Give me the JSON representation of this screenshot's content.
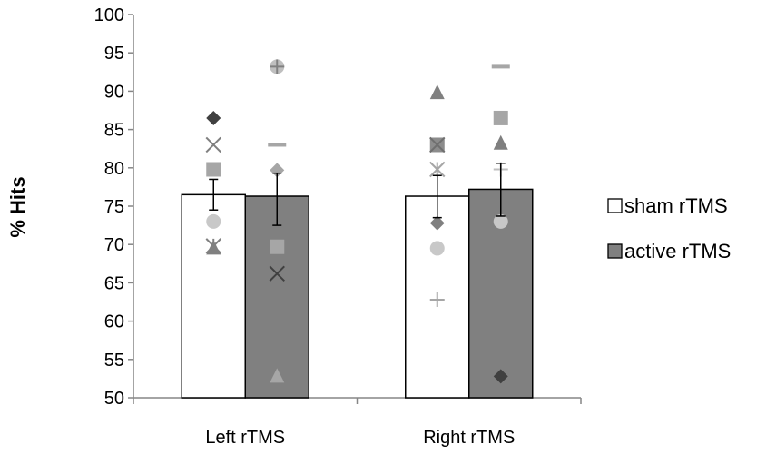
{
  "chart_data": {
    "type": "bar",
    "ylabel": "% Hits",
    "xlabel": "",
    "ylim": [
      50,
      100
    ],
    "ytick_step": 5,
    "categories": [
      "Left rTMS",
      "Right rTMS"
    ],
    "legend_position": "right",
    "series": [
      {
        "name": "sham rTMS",
        "color": "#ffffff",
        "values": [
          76.5,
          76.3
        ],
        "error": [
          [
            74.5,
            78.5
          ],
          [
            73.5,
            79.0
          ]
        ],
        "points": [
          [
            {
              "marker": "diamond",
              "value": 86.5,
              "color": "#404040"
            },
            {
              "marker": "x",
              "value": 83.0,
              "color": "#7f7f7f"
            },
            {
              "marker": "square",
              "value": 79.8,
              "color": "#a6a6a6"
            },
            {
              "marker": "circle",
              "value": 73.0,
              "color": "#c8c8c8"
            },
            {
              "marker": "star",
              "value": 69.8,
              "color": "#808080"
            },
            {
              "marker": "triangle",
              "value": 69.5,
              "color": "#808080"
            }
          ],
          [
            {
              "marker": "triangle",
              "value": 89.8,
              "color": "#808080"
            },
            {
              "marker": "square",
              "value": 83.0,
              "color": "#8c8c8c"
            },
            {
              "marker": "x",
              "value": 83.0,
              "color": "#6f6f6f"
            },
            {
              "marker": "star",
              "value": 79.8,
              "color": "#a6a6a6"
            },
            {
              "marker": "diamond",
              "value": 72.8,
              "color": "#808080"
            },
            {
              "marker": "circle",
              "value": 69.5,
              "color": "#c8c8c8"
            },
            {
              "marker": "plus",
              "value": 62.8,
              "color": "#a6a6a6"
            }
          ]
        ]
      },
      {
        "name": "active rTMS",
        "color": "#808080",
        "values": [
          76.3,
          77.2
        ],
        "error": [
          [
            72.5,
            79.3
          ],
          [
            73.7,
            80.6
          ]
        ],
        "points": [
          [
            {
              "marker": "circleplus",
              "value": 93.2,
              "color": "#bfbfbf"
            },
            {
              "marker": "dash",
              "value": 83.0,
              "color": "#a6a6a6"
            },
            {
              "marker": "diamond",
              "value": 79.7,
              "color": "#a6a6a6"
            },
            {
              "marker": "square",
              "value": 69.7,
              "color": "#a6a6a6"
            },
            {
              "marker": "x",
              "value": 66.2,
              "color": "#404040"
            },
            {
              "marker": "triangle",
              "value": 52.8,
              "color": "#a6a6a6"
            }
          ],
          [
            {
              "marker": "dash",
              "value": 93.2,
              "color": "#a6a6a6"
            },
            {
              "marker": "square",
              "value": 86.5,
              "color": "#a6a6a6"
            },
            {
              "marker": "triangle",
              "value": 83.2,
              "color": "#7f7f7f"
            },
            {
              "marker": "plus",
              "value": 79.8,
              "color": "#bfbfbf"
            },
            {
              "marker": "circle",
              "value": 73.0,
              "color": "#c8c8c8"
            },
            {
              "marker": "diamond",
              "value": 52.8,
              "color": "#404040"
            }
          ]
        ]
      }
    ]
  }
}
